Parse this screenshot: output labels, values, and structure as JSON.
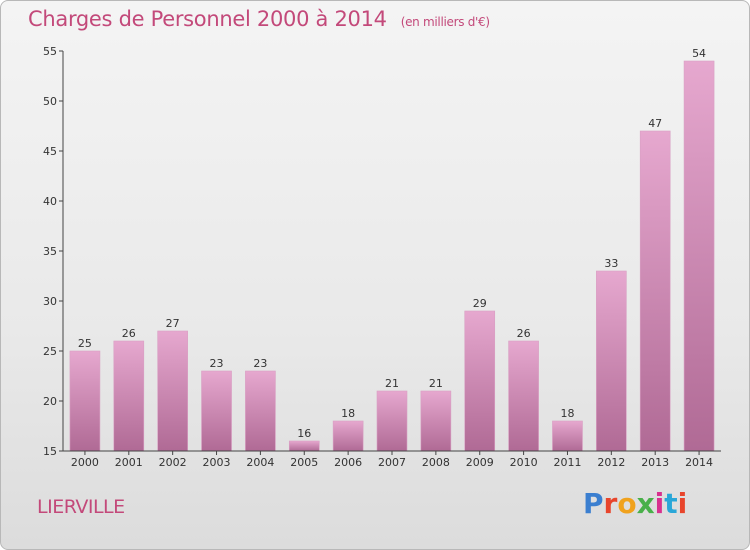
{
  "title": "Charges de Personnel 2000 à 2014",
  "subtitle": "(en milliers d'€)",
  "location": "LIERVILLE",
  "logo": {
    "text": "Proxiti",
    "colors": [
      "#3b7fd0",
      "#e8452c",
      "#f0a21d",
      "#49b04a",
      "#d8318f",
      "#2aa7d8",
      "#e8452c"
    ]
  },
  "colors": {
    "title": "#c3497a",
    "bar_top": "#e6a8cf",
    "bar_bottom": "#b06a95",
    "axis": "#444444"
  },
  "chart_data": {
    "type": "bar",
    "categories": [
      "2000",
      "2001",
      "2002",
      "2003",
      "2004",
      "2005",
      "2006",
      "2007",
      "2008",
      "2009",
      "2010",
      "2011",
      "2012",
      "2013",
      "2014"
    ],
    "values": [
      25,
      26,
      27,
      23,
      23,
      16,
      18,
      21,
      21,
      29,
      26,
      18,
      33,
      47,
      54
    ],
    "yticks": [
      15,
      20,
      25,
      30,
      35,
      40,
      45,
      50,
      55
    ],
    "ylim": [
      15,
      55
    ],
    "grid": false
  }
}
